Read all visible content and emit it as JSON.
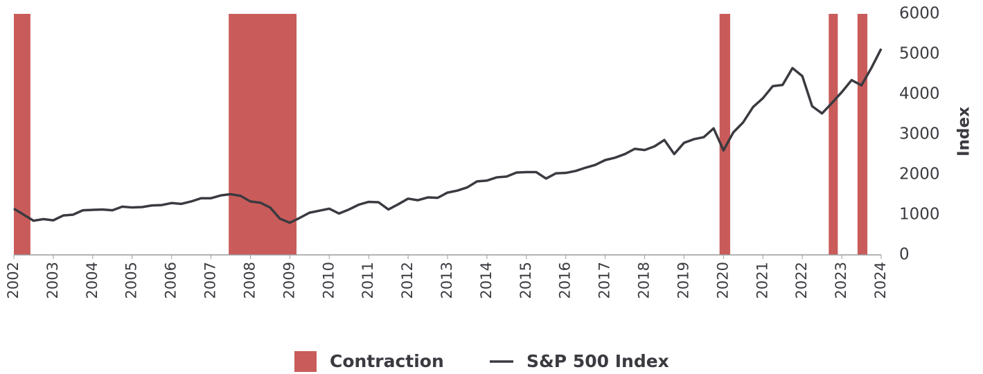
{
  "chart_data": {
    "type": "line",
    "xlim": [
      2002,
      2024
    ],
    "xticks": [
      2002,
      2003,
      2004,
      2005,
      2006,
      2007,
      2008,
      2009,
      2010,
      2011,
      2012,
      2013,
      2014,
      2015,
      2016,
      2017,
      2018,
      2019,
      2020,
      2021,
      2022,
      2023,
      2024
    ],
    "ylim": [
      0,
      6000
    ],
    "yticks": [
      0,
      1000,
      2000,
      3000,
      4000,
      5000,
      6000
    ],
    "ylabel": "Index",
    "bands": {
      "name": "Contraction",
      "color": "#c95c5a",
      "ranges": [
        [
          2002,
          2002.42
        ],
        [
          2007.45,
          2009.17
        ],
        [
          2019.9,
          2020.17
        ],
        [
          2022.67,
          2022.9
        ],
        [
          2023.4,
          2023.65
        ]
      ]
    },
    "series": [
      {
        "name": "S&P 500 Index",
        "color": "#3b3a40",
        "x": [
          2002,
          2002.25,
          2002.5,
          2002.75,
          2003,
          2003.25,
          2003.5,
          2003.75,
          2004,
          2004.25,
          2004.5,
          2004.75,
          2005,
          2005.25,
          2005.5,
          2005.75,
          2006,
          2006.25,
          2006.5,
          2006.75,
          2007,
          2007.25,
          2007.5,
          2007.75,
          2008,
          2008.25,
          2008.5,
          2008.75,
          2009,
          2009.25,
          2009.5,
          2009.75,
          2010,
          2010.25,
          2010.5,
          2010.75,
          2011,
          2011.25,
          2011.5,
          2011.75,
          2012,
          2012.25,
          2012.5,
          2012.75,
          2013,
          2013.25,
          2013.5,
          2013.75,
          2014,
          2014.25,
          2014.5,
          2014.75,
          2015,
          2015.25,
          2015.5,
          2015.75,
          2016,
          2016.25,
          2016.5,
          2016.75,
          2017,
          2017.25,
          2017.5,
          2017.75,
          2018,
          2018.25,
          2018.5,
          2018.75,
          2019,
          2019.25,
          2019.5,
          2019.75,
          2020,
          2020.25,
          2020.5,
          2020.75,
          2021,
          2021.25,
          2021.5,
          2021.75,
          2022,
          2022.25,
          2022.5,
          2022.75,
          2023,
          2023.25,
          2023.5,
          2023.75,
          2024
        ],
        "values": [
          1150,
          1000,
          850,
          890,
          860,
          980,
          1000,
          1110,
          1120,
          1130,
          1110,
          1200,
          1180,
          1190,
          1230,
          1240,
          1290,
          1270,
          1330,
          1410,
          1410,
          1480,
          1510,
          1470,
          1330,
          1300,
          1180,
          900,
          800,
          920,
          1050,
          1100,
          1150,
          1030,
          1130,
          1250,
          1320,
          1310,
          1130,
          1260,
          1400,
          1360,
          1430,
          1420,
          1550,
          1600,
          1680,
          1830,
          1850,
          1930,
          1950,
          2050,
          2060,
          2060,
          1900,
          2030,
          2040,
          2090,
          2170,
          2240,
          2360,
          2420,
          2510,
          2640,
          2610,
          2700,
          2860,
          2510,
          2790,
          2880,
          2930,
          3150,
          2600,
          3050,
          3300,
          3680,
          3900,
          4200,
          4230,
          4650,
          4450,
          3700,
          3520,
          3780,
          4050,
          4350,
          4220,
          4650,
          5130
        ]
      }
    ]
  }
}
